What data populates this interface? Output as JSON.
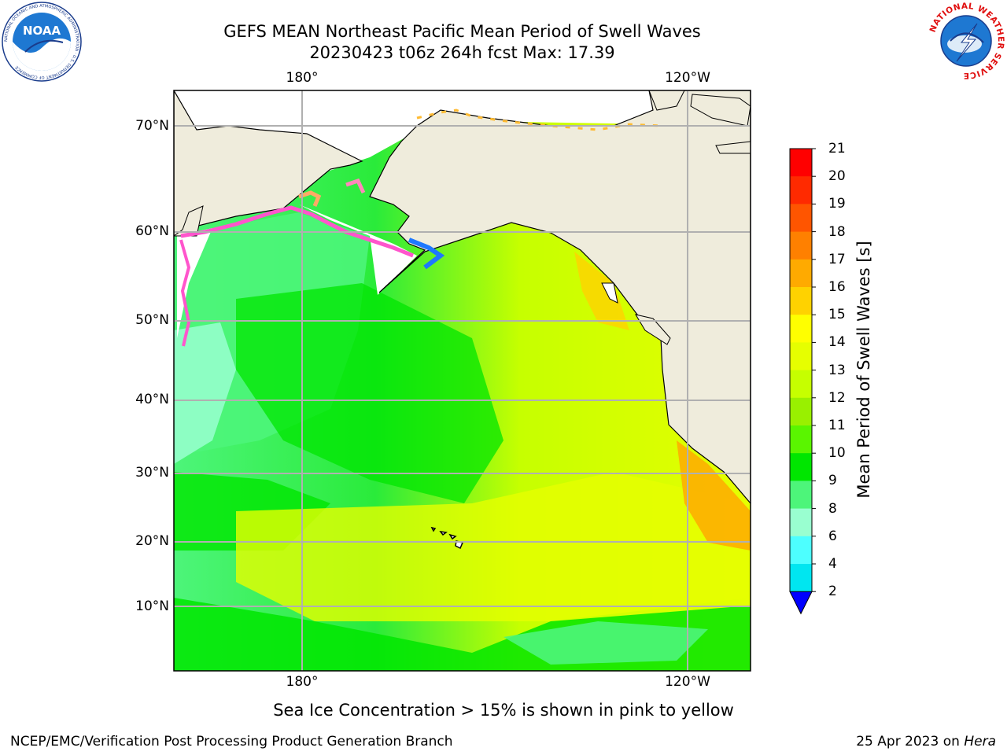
{
  "header": {
    "title_line1": "GEFS MEAN Northeast Pacific Mean Period of Swell Waves",
    "title_line2": "20230423 t06z 264h fcst   Max: 17.39",
    "left_logo": "noaa-logo",
    "left_logo_text": "NOAA",
    "left_logo_ring_text": "NATIONAL OCEANIC AND ATMOSPHERIC ADMINISTRATION · U.S. DEPARTMENT OF COMMERCE",
    "right_logo": "nws-logo",
    "right_logo_ring_text": "NATIONAL WEATHER SERVICE"
  },
  "map": {
    "lon_labels_top": [
      "180°",
      "120°W"
    ],
    "lon_labels_bottom": [
      "180°",
      "120°W"
    ],
    "lat_labels": [
      "70°N",
      "60°N",
      "50°N",
      "40°N",
      "30°N",
      "20°N",
      "10°N"
    ],
    "land_color": "#efecdc",
    "grid_color": "#b0b0b0"
  },
  "colorbar": {
    "title": "Mean Period of Swell Waves [s]",
    "ticks": [
      "21",
      "20",
      "19",
      "18",
      "17",
      "16",
      "15",
      "14",
      "13",
      "12",
      "11",
      "10",
      "9",
      "8",
      "6",
      "4",
      "2"
    ],
    "colors_top_to_bottom": [
      "#ff0000",
      "#ff2a00",
      "#ff5500",
      "#ff8000",
      "#ffaa00",
      "#ffd200",
      "#ffff00",
      "#e6ff00",
      "#c6ff00",
      "#99f000",
      "#5af500",
      "#00e600",
      "#4df57a",
      "#99ffd0",
      "#4dffff",
      "#00e6f0",
      "#00aaff",
      "#0055ff"
    ],
    "extend_color": "#0000ff"
  },
  "caption": "Sea Ice Concentration > 15% is shown in pink to yellow",
  "footer": {
    "left": "NCEP/EMC/Verification Post Processing Product Generation Branch",
    "right_prefix": "25 Apr 2023 on ",
    "right_machine": "Hera"
  }
}
